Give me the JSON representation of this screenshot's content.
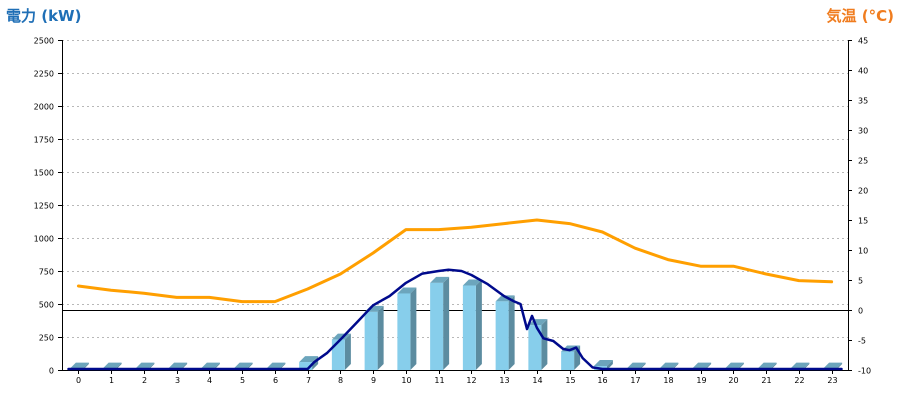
{
  "chart_data": {
    "type": "bar",
    "ylabel_left": "電力 (kW)",
    "ylabel_right": "気温 (°C)",
    "categories": [
      "0",
      "1",
      "2",
      "3",
      "4",
      "5",
      "6",
      "7",
      "8",
      "9",
      "10",
      "11",
      "12",
      "13",
      "14",
      "15",
      "16",
      "17",
      "18",
      "19",
      "20",
      "21",
      "22",
      "23"
    ],
    "y_left_ticks": [
      "2500",
      "2250",
      "2000",
      "1750",
      "1500",
      "1250",
      "1000",
      "750",
      "500",
      "250",
      "0"
    ],
    "y_right_ticks": [
      "45",
      "40",
      "35",
      "30",
      "25",
      "20",
      "15",
      "10",
      "5",
      "0",
      "-5",
      "-10"
    ],
    "y_left_range": [
      0,
      2500
    ],
    "y_right_range": [
      -10,
      45
    ],
    "bars": {
      "values": [
        10,
        10,
        10,
        10,
        10,
        10,
        10,
        60,
        230,
        440,
        580,
        660,
        640,
        520,
        340,
        140,
        30,
        10,
        10,
        10,
        10,
        10,
        10,
        10
      ],
      "color": "#87ceeb"
    },
    "power_curve": {
      "color": "#000a8c",
      "points": [
        [
          -0.3,
          0
        ],
        [
          7,
          0
        ],
        [
          7.2,
          60
        ],
        [
          7.6,
          130
        ],
        [
          8,
          230
        ],
        [
          8.5,
          360
        ],
        [
          9,
          490
        ],
        [
          9.5,
          560
        ],
        [
          10,
          660
        ],
        [
          10.5,
          730
        ],
        [
          11,
          750
        ],
        [
          11.3,
          760
        ],
        [
          11.7,
          750
        ],
        [
          12,
          720
        ],
        [
          12.5,
          650
        ],
        [
          13,
          560
        ],
        [
          13.3,
          520
        ],
        [
          13.5,
          500
        ],
        [
          13.7,
          310
        ],
        [
          13.85,
          410
        ],
        [
          14,
          320
        ],
        [
          14.2,
          240
        ],
        [
          14.5,
          220
        ],
        [
          14.8,
          160
        ],
        [
          15,
          150
        ],
        [
          15.2,
          170
        ],
        [
          15.4,
          90
        ],
        [
          15.7,
          20
        ],
        [
          16,
          0
        ],
        [
          23.3,
          0
        ]
      ]
    },
    "temperature": {
      "color": "#ff9f00",
      "points": [
        [
          0,
          4
        ],
        [
          1,
          3.3
        ],
        [
          2,
          2.8
        ],
        [
          3,
          2.1
        ],
        [
          4,
          2.1
        ],
        [
          5,
          1.4
        ],
        [
          6,
          1.4
        ],
        [
          7,
          3.5
        ],
        [
          8,
          6.0
        ],
        [
          9,
          9.5
        ],
        [
          10,
          13.4
        ],
        [
          11,
          13.4
        ],
        [
          12,
          13.8
        ],
        [
          13,
          14.4
        ],
        [
          14,
          15.0
        ],
        [
          15,
          14.4
        ],
        [
          16,
          13.0
        ],
        [
          17,
          10.3
        ],
        [
          18,
          8.4
        ],
        [
          19,
          7.3
        ],
        [
          20,
          7.3
        ],
        [
          21,
          6.0
        ],
        [
          22,
          4.9
        ],
        [
          23,
          4.7
        ]
      ]
    }
  }
}
